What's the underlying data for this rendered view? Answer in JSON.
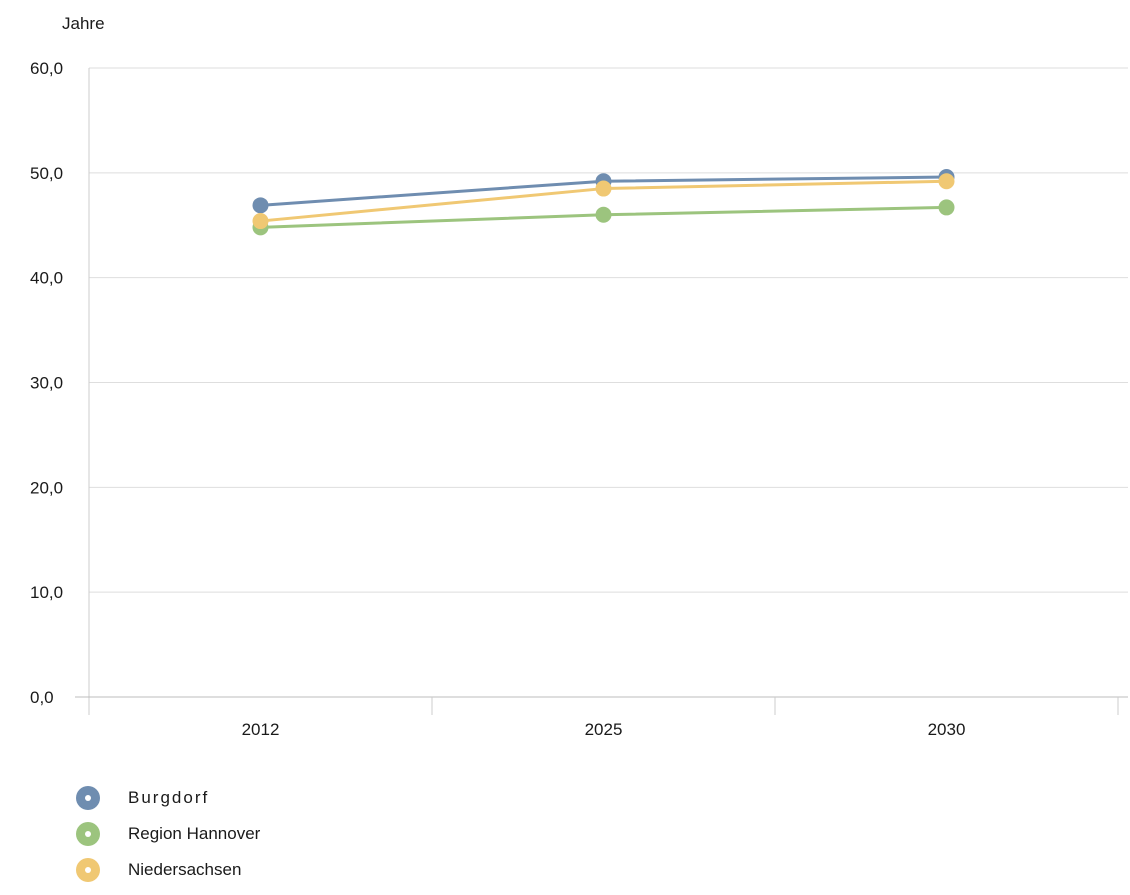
{
  "chart_data": {
    "type": "line",
    "unit_label": "Jahre",
    "categories": [
      "2012",
      "2025",
      "2030"
    ],
    "ylim": [
      0,
      60
    ],
    "y_ticks": [
      "0,0",
      "10,0",
      "20,0",
      "30,0",
      "40,0",
      "50,0",
      "60,0"
    ],
    "grid": true,
    "legend_placement": "bottom-left",
    "series": [
      {
        "name": "Burgdorf",
        "values": [
          46.9,
          49.2,
          49.6
        ],
        "color": "#6f8db0"
      },
      {
        "name": "Region Hannover",
        "values": [
          44.8,
          46.0,
          46.7
        ],
        "color": "#9cc47e"
      },
      {
        "name": "Niedersachsen",
        "values": [
          45.4,
          48.5,
          49.2
        ],
        "color": "#f0c873"
      }
    ]
  }
}
